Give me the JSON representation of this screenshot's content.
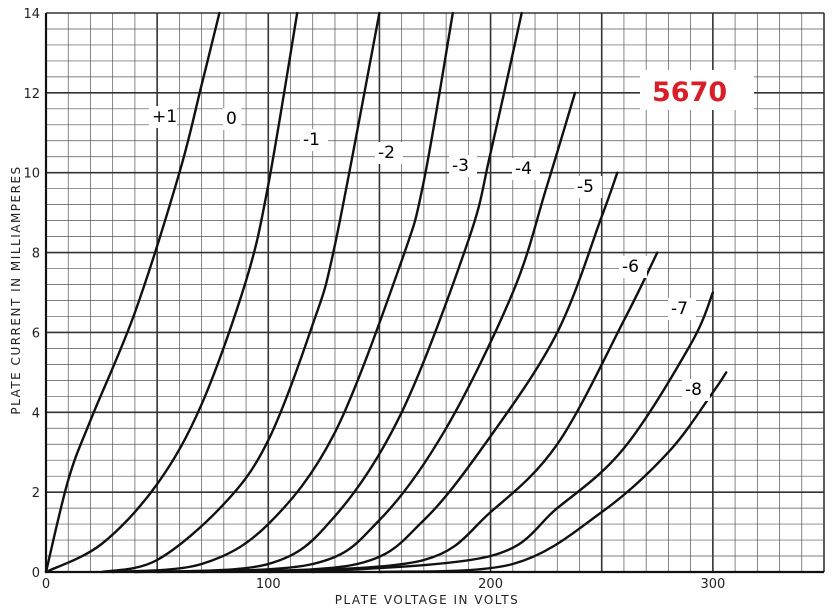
{
  "tube_label": "5670",
  "colors": {
    "tube_label": "#d81e28",
    "curve": "#111111",
    "grid_major": "#333333",
    "grid_minor": "#555555",
    "background": "#ffffff"
  },
  "chart_data": {
    "type": "line",
    "title": "",
    "xlabel": "PLATE VOLTAGE IN VOLTS",
    "ylabel": "PLATE CURRENT IN MILLIAMPERES",
    "xlim": [
      0,
      350
    ],
    "ylim": [
      0,
      14
    ],
    "x_ticks": [
      0,
      100,
      200,
      300
    ],
    "y_ticks": [
      0,
      2,
      4,
      6,
      8,
      10,
      12,
      14
    ],
    "grid": true,
    "series": [
      {
        "name": "+1",
        "x": [
          0,
          10,
          20,
          40,
          60,
          70,
          78
        ],
        "y": [
          0,
          2.3,
          3.8,
          6.5,
          10.0,
          12.2,
          14.0
        ]
      },
      {
        "name": "0",
        "x": [
          0,
          25,
          50,
          70,
          90,
          100,
          113
        ],
        "y": [
          0,
          0.7,
          2.2,
          4.2,
          7.3,
          9.7,
          14.0
        ]
      },
      {
        "name": "-1",
        "x": [
          25,
          50,
          80,
          100,
          120,
          130,
          150
        ],
        "y": [
          0,
          0.3,
          1.7,
          3.3,
          6.2,
          8.2,
          14.0
        ]
      },
      {
        "name": "-2",
        "x": [
          30,
          70,
          100,
          130,
          160,
          170,
          183
        ],
        "y": [
          0,
          0.2,
          1.2,
          3.5,
          7.8,
          9.8,
          14.0
        ]
      },
      {
        "name": "-3",
        "x": [
          40,
          100,
          130,
          160,
          190,
          200,
          214
        ],
        "y": [
          0,
          0.2,
          1.4,
          4.0,
          8.3,
          10.5,
          14.0
        ]
      },
      {
        "name": "-4",
        "x": [
          50,
          120,
          150,
          180,
          210,
          225,
          238
        ],
        "y": [
          0,
          0.2,
          1.3,
          3.6,
          7.0,
          9.6,
          12.0
        ]
      },
      {
        "name": "-5",
        "x": [
          70,
          140,
          170,
          200,
          230,
          250,
          257
        ],
        "y": [
          0,
          0.2,
          1.3,
          3.4,
          6.0,
          8.9,
          10.0
        ]
      },
      {
        "name": "-6",
        "x": [
          100,
          170,
          200,
          230,
          260,
          275
        ],
        "y": [
          0,
          0.3,
          1.5,
          3.2,
          6.3,
          8.0
        ]
      },
      {
        "name": "-7",
        "x": [
          120,
          200,
          230,
          260,
          290,
          300
        ],
        "y": [
          0,
          0.4,
          1.6,
          3.1,
          5.7,
          7.0
        ]
      },
      {
        "name": "-8",
        "x": [
          150,
          210,
          250,
          280,
          300,
          306
        ],
        "y": [
          0,
          0.2,
          1.5,
          3.0,
          4.5,
          5.0
        ]
      }
    ]
  }
}
